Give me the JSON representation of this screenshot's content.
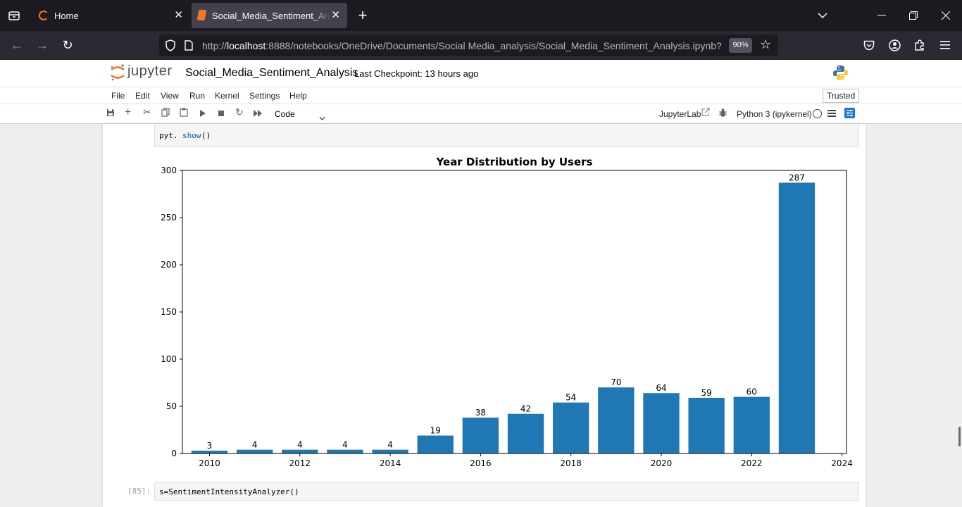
{
  "browser": {
    "tabs": [
      {
        "title": "Home"
      },
      {
        "title": "Social_Media_Sentiment_Analysis"
      }
    ],
    "url_prefix": "http://",
    "url_host": "localhost",
    "url_rest": ":8888/notebooks/OneDrive/Documents/Social Media_analysis/Social_Media_Sentiment_Analysis.ipynb?",
    "zoom": "90%"
  },
  "jupyter": {
    "logo_text": "jupyter",
    "notebook_name": "Social_Media_Sentiment_Analysis",
    "checkpoint": "Last Checkpoint: 13 hours ago",
    "menu": [
      "File",
      "Edit",
      "View",
      "Run",
      "Kernel",
      "Settings",
      "Help"
    ],
    "trusted": "Trusted",
    "cell_type": "Code",
    "jupyterlab_label": "JupyterLab",
    "kernel": "Python 3 (ipykernel)"
  },
  "cells": {
    "cell1_obj": "pyt.",
    "cell1_fn": "show",
    "cell1_rest": "()",
    "cell2_prompt": "[85]:",
    "cell2_code": "s=SentimentIntensityAnalyzer()"
  },
  "colors": {
    "bar": "#1f77b4",
    "accent_orange": "#f37726",
    "toolbar_blue": "#1976d2"
  },
  "chart_data": {
    "type": "bar",
    "title": "Year Distribution by Users",
    "x": [
      2010,
      2011,
      2012,
      2013,
      2014,
      2015,
      2016,
      2017,
      2018,
      2019,
      2020,
      2021,
      2022,
      2023
    ],
    "values": [
      3,
      4,
      4,
      4,
      4,
      19,
      38,
      42,
      54,
      70,
      64,
      59,
      60,
      287
    ],
    "xlim": [
      2009.4,
      2024.1
    ],
    "ylim": [
      0,
      300
    ],
    "xticks": [
      2010,
      2012,
      2014,
      2016,
      2018,
      2020,
      2022,
      2024
    ],
    "yticks": [
      0,
      50,
      100,
      150,
      200,
      250,
      300
    ],
    "grid": false,
    "color": "#1f77b4"
  }
}
